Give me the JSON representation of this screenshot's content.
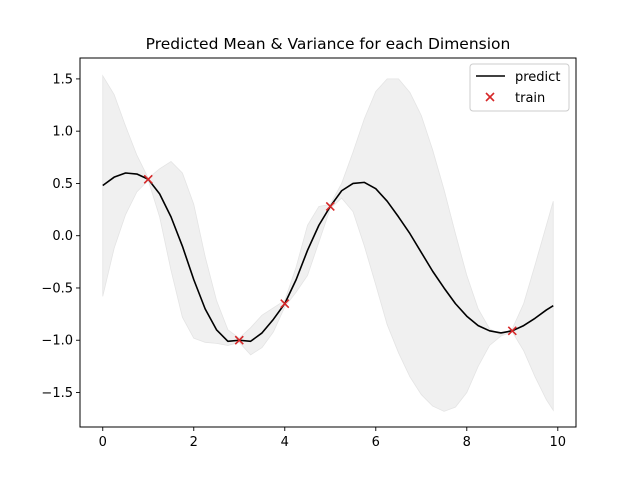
{
  "chart_data": {
    "type": "line",
    "title": "Predicted Mean & Variance for each Dimension",
    "xlabel": "",
    "ylabel": "",
    "xlim": [
      -0.5,
      10.4
    ],
    "ylim": [
      -1.83,
      1.7
    ],
    "xticks": [
      0,
      2,
      4,
      6,
      8,
      10
    ],
    "xtick_labels": [
      "0",
      "2",
      "4",
      "6",
      "8",
      "10"
    ],
    "yticks": [
      1.5,
      1.0,
      0.5,
      0.0,
      -0.5,
      -1.0,
      -1.5
    ],
    "ytick_labels": [
      "1.5",
      "1.0",
      "0.5",
      "0.0",
      "−0.5",
      "−1.0",
      "−1.5"
    ],
    "grid": false,
    "legend": {
      "position": "top-right",
      "entries": [
        {
          "label": "predict",
          "marker": "line",
          "color": "#000000"
        },
        {
          "label": "train",
          "marker": "x",
          "color": "#d62728"
        }
      ]
    },
    "series": [
      {
        "name": "predict",
        "kind": "line",
        "color": "#000000",
        "x": [
          0,
          0.25,
          0.5,
          0.75,
          1.0,
          1.25,
          1.5,
          1.75,
          2.0,
          2.25,
          2.5,
          2.75,
          3.0,
          3.25,
          3.5,
          3.75,
          4.0,
          4.25,
          4.5,
          4.75,
          5.0,
          5.25,
          5.5,
          5.75,
          6.0,
          6.25,
          6.5,
          6.75,
          7.0,
          7.25,
          7.5,
          7.75,
          8.0,
          8.25,
          8.5,
          8.75,
          9.0,
          9.25,
          9.5,
          9.75,
          9.9
        ],
        "y": [
          0.48,
          0.56,
          0.6,
          0.59,
          0.54,
          0.4,
          0.18,
          -0.1,
          -0.42,
          -0.7,
          -0.9,
          -1.01,
          -1.0,
          -1.01,
          -0.93,
          -0.8,
          -0.65,
          -0.42,
          -0.14,
          0.1,
          0.28,
          0.43,
          0.5,
          0.51,
          0.45,
          0.33,
          0.18,
          0.02,
          -0.16,
          -0.34,
          -0.5,
          -0.65,
          -0.77,
          -0.86,
          -0.91,
          -0.93,
          -0.91,
          -0.86,
          -0.79,
          -0.71,
          -0.67
        ]
      },
      {
        "name": "train",
        "kind": "scatter",
        "marker": "x",
        "color": "#d62728",
        "x": [
          1,
          3,
          4,
          5,
          9
        ],
        "y": [
          0.54,
          -1.0,
          -0.65,
          0.28,
          -0.91
        ]
      }
    ],
    "variance_band": {
      "color": "#f0f0f0",
      "x": [
        0,
        0.25,
        0.5,
        0.75,
        1.0,
        1.25,
        1.5,
        1.75,
        2.0,
        2.25,
        2.5,
        2.75,
        3.0,
        3.25,
        3.5,
        3.75,
        4.0,
        4.25,
        4.5,
        4.75,
        5.0,
        5.25,
        5.5,
        5.75,
        6.0,
        6.25,
        6.5,
        6.75,
        7.0,
        7.25,
        7.5,
        7.75,
        8.0,
        8.25,
        8.5,
        8.75,
        9.0,
        9.25,
        9.5,
        9.75,
        9.9
      ],
      "upper": [
        1.53,
        1.35,
        1.05,
        0.77,
        0.55,
        0.64,
        0.71,
        0.6,
        0.3,
        -0.2,
        -0.62,
        -0.9,
        -0.98,
        -0.88,
        -0.76,
        -0.69,
        -0.62,
        -0.3,
        0.1,
        0.28,
        0.3,
        0.5,
        0.8,
        1.12,
        1.38,
        1.5,
        1.5,
        1.37,
        1.15,
        0.82,
        0.44,
        0.02,
        -0.38,
        -0.7,
        -0.89,
        -0.95,
        -0.89,
        -0.65,
        -0.28,
        0.1,
        0.33
      ],
      "lower": [
        -0.58,
        -0.12,
        0.2,
        0.42,
        0.53,
        0.18,
        -0.33,
        -0.78,
        -0.98,
        -1.02,
        -1.03,
        -1.05,
        -1.02,
        -1.14,
        -1.07,
        -0.92,
        -0.68,
        -0.54,
        -0.38,
        -0.06,
        0.26,
        0.36,
        0.23,
        -0.1,
        -0.47,
        -0.85,
        -1.12,
        -1.35,
        -1.52,
        -1.63,
        -1.68,
        -1.64,
        -1.5,
        -1.25,
        -1.05,
        -0.96,
        -0.92,
        -1.1,
        -1.35,
        -1.57,
        -1.67
      ]
    }
  }
}
